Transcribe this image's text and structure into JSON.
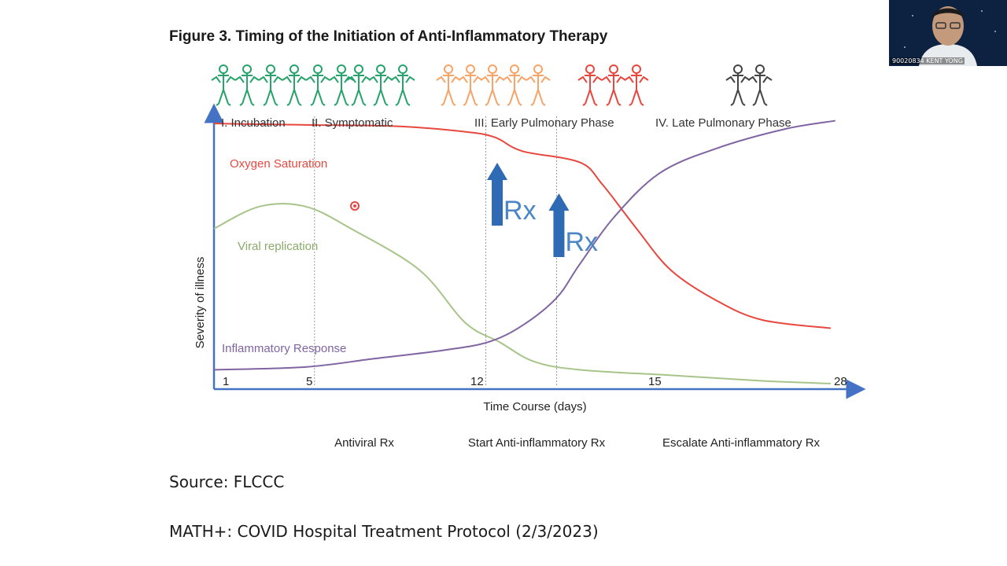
{
  "slide": {
    "title": "Figure 3. Timing of the Initiation of Anti-Inflammatory Therapy",
    "source": "Source: FLCCC",
    "protocol": "MATH+: COVID Hospital Treatment Protocol (2/3/2023)"
  },
  "video": {
    "name": "90020834 KENT YONG"
  },
  "chart_data": {
    "type": "line",
    "xlabel": "Time Course (days)",
    "ylabel": "Severity of illness",
    "xlim": [
      0,
      28
    ],
    "x_ticks": [
      "1",
      "5",
      "12",
      "15",
      "28"
    ],
    "phases": [
      "I. Incubation",
      "II. Symptomatic",
      "III. Early Pulmonary Phase",
      "IV. Late Pulmonary Phase"
    ],
    "phase_boundaries": [
      5,
      12,
      15
    ],
    "treatments": [
      "Antiviral Rx",
      "Start Anti-inflammatory Rx",
      "Escalate Anti-inflammatory Rx"
    ],
    "annotations": [
      "Rx",
      "Rx"
    ],
    "series": [
      {
        "name": "Oxygen Saturation",
        "color": "#e8473f",
        "x": [
          0,
          4,
          8,
          11,
          12.3,
          13.5,
          16,
          17,
          18.5,
          20,
          22,
          24,
          27
        ],
        "y": [
          0.96,
          0.955,
          0.95,
          0.93,
          0.91,
          0.86,
          0.82,
          0.74,
          0.58,
          0.43,
          0.32,
          0.25,
          0.22
        ]
      },
      {
        "name": "Viral replication",
        "color": "#a7c48a",
        "x": [
          0,
          2,
          4,
          6,
          9,
          11,
          12.5,
          14,
          16,
          20,
          24,
          27
        ],
        "y": [
          0.58,
          0.66,
          0.66,
          0.58,
          0.43,
          0.24,
          0.17,
          0.1,
          0.07,
          0.05,
          0.03,
          0.02
        ]
      },
      {
        "name": "Inflammatory Response",
        "color": "#8064a2",
        "x": [
          0,
          4,
          7,
          10,
          12,
          13.5,
          15,
          16,
          17.5,
          19.5,
          22,
          25,
          27.2
        ],
        "y": [
          0.07,
          0.08,
          0.11,
          0.14,
          0.17,
          0.23,
          0.33,
          0.45,
          0.62,
          0.78,
          0.87,
          0.94,
          0.97
        ]
      }
    ]
  }
}
